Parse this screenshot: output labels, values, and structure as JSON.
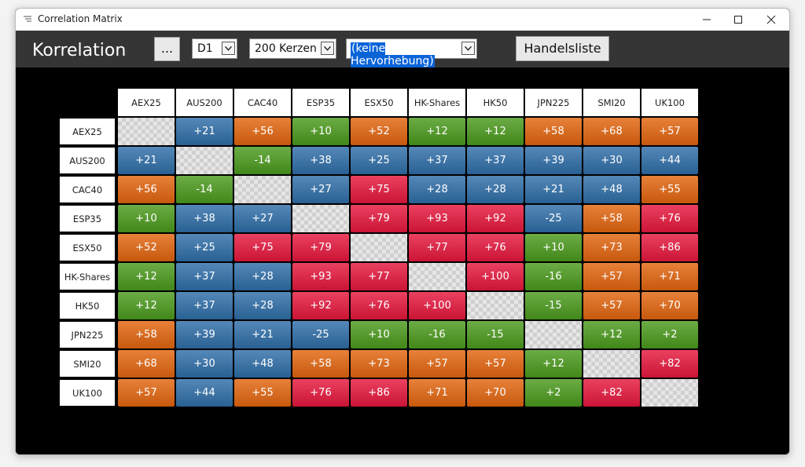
{
  "window": {
    "title": "Correlation Matrix"
  },
  "toolbar": {
    "heading": "Korrelation",
    "more_button": "...",
    "timeframe": "D1",
    "candles": "200 Kerzen",
    "highlight": "(keine Hervorhebung)",
    "trade_list_button": "Handelsliste"
  },
  "table": {
    "columns": [
      "AEX25",
      "AUS200",
      "CAC40",
      "ESP35",
      "ESX50",
      "HK-Shares",
      "HK50",
      "JPN225",
      "SMI20",
      "UK100"
    ],
    "rows": [
      {
        "label": "AEX25",
        "cells": [
          null,
          "+21",
          "+56",
          "+10",
          "+52",
          "+12",
          "+12",
          "+58",
          "+68",
          "+57"
        ],
        "colors": [
          null,
          "#2f6ea8",
          "#e2650f",
          "#4b9a1d",
          "#e2650f",
          "#4b9a1d",
          "#4b9a1d",
          "#e2650f",
          "#e2650f",
          "#e2650f"
        ]
      },
      {
        "label": "AUS200",
        "cells": [
          "+21",
          null,
          "-14",
          "+38",
          "+25",
          "+37",
          "+37",
          "+39",
          "+30",
          "+44"
        ],
        "colors": [
          "#2f6ea8",
          null,
          "#4b9a1d",
          "#2f6ea8",
          "#2f6ea8",
          "#2f6ea8",
          "#2f6ea8",
          "#2f6ea8",
          "#2f6ea8",
          "#2f6ea8"
        ]
      },
      {
        "label": "CAC40",
        "cells": [
          "+56",
          "-14",
          null,
          "+27",
          "+75",
          "+28",
          "+28",
          "+21",
          "+48",
          "+55"
        ],
        "colors": [
          "#e2650f",
          "#4b9a1d",
          null,
          "#2f6ea8",
          "#e6173d",
          "#2f6ea8",
          "#2f6ea8",
          "#2f6ea8",
          "#2f6ea8",
          "#e2650f"
        ]
      },
      {
        "label": "ESP35",
        "cells": [
          "+10",
          "+38",
          "+27",
          null,
          "+79",
          "+93",
          "+92",
          "-25",
          "+58",
          "+76"
        ],
        "colors": [
          "#4b9a1d",
          "#2f6ea8",
          "#2f6ea8",
          null,
          "#e6173d",
          "#e6173d",
          "#e6173d",
          "#2f6ea8",
          "#e2650f",
          "#e6173d"
        ]
      },
      {
        "label": "ESX50",
        "cells": [
          "+52",
          "+25",
          "+75",
          "+79",
          null,
          "+77",
          "+76",
          "+10",
          "+73",
          "+86"
        ],
        "colors": [
          "#e2650f",
          "#2f6ea8",
          "#e6173d",
          "#e6173d",
          null,
          "#e6173d",
          "#e6173d",
          "#4b9a1d",
          "#e2650f",
          "#e6173d"
        ]
      },
      {
        "label": "HK-Shares",
        "cells": [
          "+12",
          "+37",
          "+28",
          "+93",
          "+77",
          null,
          "+100",
          "-16",
          "+57",
          "+71"
        ],
        "colors": [
          "#4b9a1d",
          "#2f6ea8",
          "#2f6ea8",
          "#e6173d",
          "#e6173d",
          null,
          "#e6173d",
          "#4b9a1d",
          "#e2650f",
          "#e2650f"
        ]
      },
      {
        "label": "HK50",
        "cells": [
          "+12",
          "+37",
          "+28",
          "+92",
          "+76",
          "+100",
          null,
          "-15",
          "+57",
          "+70"
        ],
        "colors": [
          "#4b9a1d",
          "#2f6ea8",
          "#2f6ea8",
          "#e6173d",
          "#e6173d",
          "#e6173d",
          null,
          "#4b9a1d",
          "#e2650f",
          "#e2650f"
        ]
      },
      {
        "label": "JPN225",
        "cells": [
          "+58",
          "+39",
          "+21",
          "-25",
          "+10",
          "-16",
          "-15",
          null,
          "+12",
          "+2"
        ],
        "colors": [
          "#e2650f",
          "#2f6ea8",
          "#2f6ea8",
          "#2f6ea8",
          "#4b9a1d",
          "#4b9a1d",
          "#4b9a1d",
          null,
          "#4b9a1d",
          "#4b9a1d"
        ]
      },
      {
        "label": "SMI20",
        "cells": [
          "+68",
          "+30",
          "+48",
          "+58",
          "+73",
          "+57",
          "+57",
          "+12",
          null,
          "+82"
        ],
        "colors": [
          "#e2650f",
          "#2f6ea8",
          "#2f6ea8",
          "#e2650f",
          "#e2650f",
          "#e2650f",
          "#e2650f",
          "#4b9a1d",
          null,
          "#e6173d"
        ]
      },
      {
        "label": "UK100",
        "cells": [
          "+57",
          "+44",
          "+55",
          "+76",
          "+86",
          "+71",
          "+70",
          "+2",
          "+82",
          null
        ],
        "colors": [
          "#e2650f",
          "#2f6ea8",
          "#e2650f",
          "#e6173d",
          "#e6173d",
          "#e2650f",
          "#e2650f",
          "#4b9a1d",
          "#e6173d",
          null
        ]
      }
    ]
  }
}
